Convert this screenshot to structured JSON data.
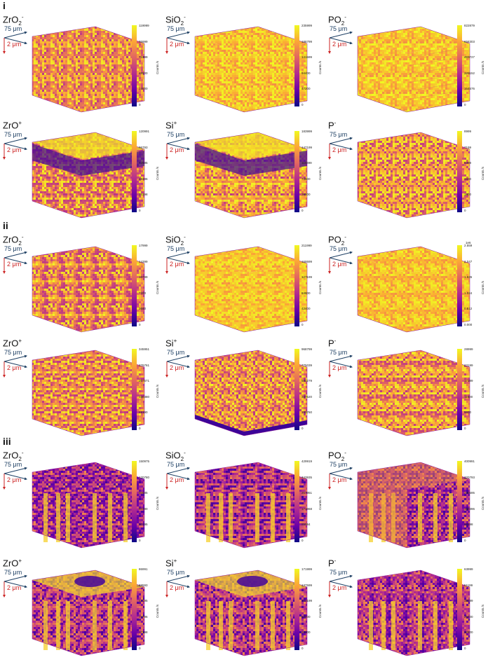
{
  "sections": [
    "i",
    "ii",
    "iii"
  ],
  "axis": {
    "x_label": "75 μm",
    "z_label": "2 μm"
  },
  "colorbar_label": "Counts /s",
  "colormap": [
    "#0d0887",
    "#6a00a8",
    "#b12a90",
    "#e16462",
    "#fca636",
    "#f0f921"
  ],
  "panels": [
    {
      "base": "ZrO",
      "sub": "2",
      "sup": "-",
      "ticks": [
        "119999",
        "95999",
        "71999",
        "48000",
        "24000",
        "0"
      ],
      "pattern": "uniform",
      "section": 0
    },
    {
      "base": "SiO",
      "sub": "2",
      "sup": "-",
      "ticks": [
        "235999",
        "188799",
        "141599",
        "94400",
        "47200",
        "0"
      ],
      "pattern": "bright",
      "section": 0
    },
    {
      "base": "PO",
      "sub": "2",
      "sup": "-",
      "ticks": [
        "822879",
        "658303",
        "493727",
        "329152",
        "164576",
        "0"
      ],
      "pattern": "bright-lines",
      "section": 0
    },
    {
      "base": "ZrO",
      "sub": "",
      "sup": "+",
      "ticks": [
        "120991",
        "96793",
        "72595",
        "48396",
        "24198",
        "0"
      ],
      "pattern": "top-layer",
      "section": 0
    },
    {
      "base": "Si",
      "sub": "",
      "sup": "+",
      "ticks": [
        "183999",
        "147199",
        "110399",
        "73600",
        "36800",
        "0"
      ],
      "pattern": "top-layer",
      "section": 0
    },
    {
      "base": "P",
      "sub": "",
      "sup": "-",
      "ticks": [
        "8999",
        "7199",
        "5399",
        "3600",
        "1800",
        "0"
      ],
      "pattern": "uniform",
      "section": 0
    },
    {
      "base": "ZrO",
      "sub": "2",
      "sup": "-",
      "ticks": [
        "17999",
        "14399",
        "10799",
        "7200",
        "3600",
        "0"
      ],
      "pattern": "uniform",
      "section": 1
    },
    {
      "base": "SiO",
      "sub": "2",
      "sup": "-",
      "ticks": [
        "211999",
        "169599",
        "127199",
        "84800",
        "42400",
        "0"
      ],
      "pattern": "bright",
      "section": 1
    },
    {
      "base": "PO",
      "sub": "2",
      "sup": "-",
      "ticks": [
        "2.559",
        "2.047",
        "1.535",
        "1.024",
        "0.512",
        "0.000"
      ],
      "exp": "1e6",
      "pattern": "bright",
      "section": 1
    },
    {
      "base": "ZrO",
      "sub": "",
      "sup": "+",
      "ticks": [
        "345951",
        "276761",
        "207571",
        "138380",
        "69190",
        "0"
      ],
      "pattern": "uniform",
      "section": 1
    },
    {
      "base": "Si",
      "sub": "",
      "sup": "+",
      "ticks": [
        "968799",
        "775039",
        "581279",
        "387520",
        "193760",
        "0"
      ],
      "pattern": "uniform-base",
      "section": 1
    },
    {
      "base": "P",
      "sub": "",
      "sup": "-",
      "ticks": [
        "28999",
        "23199",
        "17399",
        "11600",
        "5800",
        "0"
      ],
      "pattern": "uniform",
      "section": 1
    },
    {
      "base": "ZrO",
      "sub": "2",
      "sup": "-",
      "ticks": [
        "150975",
        "120780",
        "90585",
        "60390",
        "30195",
        "0"
      ],
      "pattern": "pillars",
      "section": 2
    },
    {
      "base": "SiO",
      "sub": "2",
      "sup": "-",
      "ticks": [
        "429919",
        "343935",
        "257951",
        "171968",
        "85984",
        "0"
      ],
      "pattern": "pillars",
      "section": 2
    },
    {
      "base": "PO",
      "sub": "2",
      "sup": "-",
      "ticks": [
        "400991",
        "320793",
        "240595",
        "160396",
        "80198",
        "0"
      ],
      "pattern": "pillars-bright",
      "section": 2
    },
    {
      "base": "ZrO",
      "sub": "",
      "sup": "+",
      "ticks": [
        "86991",
        "69593",
        "52195",
        "34796",
        "17398",
        "0"
      ],
      "pattern": "pillars-top",
      "section": 2
    },
    {
      "base": "Si",
      "sub": "",
      "sup": "+",
      "ticks": [
        "171999",
        "137599",
        "103199",
        "68800",
        "34400",
        "0"
      ],
      "pattern": "pillars-top",
      "section": 2
    },
    {
      "base": "P",
      "sub": "",
      "sup": "-",
      "ticks": [
        "63999",
        "51199",
        "38399",
        "25600",
        "12800",
        "0"
      ],
      "pattern": "pillars",
      "section": 2
    }
  ]
}
